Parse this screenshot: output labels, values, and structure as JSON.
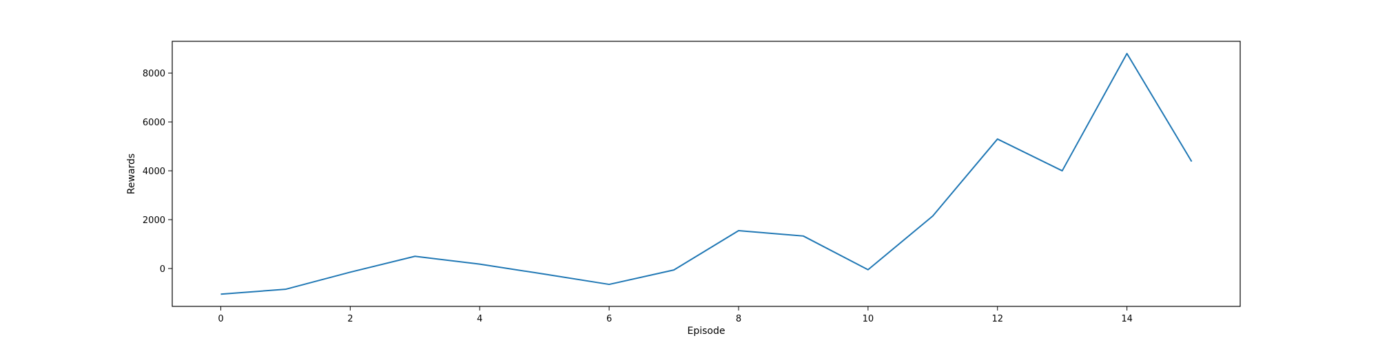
{
  "chart_data": {
    "type": "line",
    "title": "",
    "xlabel": "Episode",
    "ylabel": "Rewards",
    "xlim": [
      -0.75,
      15.75
    ],
    "ylim": [
      -1550,
      9300
    ],
    "x_ticks": [
      0,
      2,
      4,
      6,
      8,
      10,
      12,
      14
    ],
    "y_ticks": [
      0,
      2000,
      4000,
      6000,
      8000
    ],
    "grid": false,
    "legend": "none",
    "series": [
      {
        "color": "#1f77b4",
        "x": [
          0,
          1,
          2,
          3,
          4,
          5,
          6,
          7,
          8,
          9,
          10,
          11,
          12,
          13,
          14,
          15
        ],
        "values": [
          -1050,
          -850,
          -150,
          500,
          180,
          -230,
          -650,
          -60,
          1550,
          1330,
          -50,
          2150,
          5300,
          4000,
          8800,
          4380
        ]
      }
    ]
  }
}
